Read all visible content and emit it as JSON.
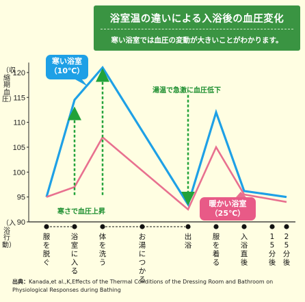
{
  "header": {
    "title": "浴室温の違いによる入浴後の血圧変化",
    "subtitle": "寒い浴室では血圧の変動が大きいことがわかります。"
  },
  "labels": {
    "ylabel": "（収縮期血圧）",
    "xlabel": "（入浴行動）",
    "cold_callout": "寒い浴室\n（10℃）",
    "warm_callout": "暖かい浴室\n（25℃）",
    "note_rise": "寒さで血圧上昇",
    "note_drop": "湯温で急激に血圧低下",
    "source_prefix": "出典：",
    "source_text": "Kanada,et al.,K,Effects of the Thermal Conditions of the Dressing Room and Bathroom on Physiological Responses during Bathing"
  },
  "colors": {
    "cold": "#1ea0e6",
    "warm": "#e8708f",
    "arrow": "#22a23a",
    "title_bg": "#3a9442",
    "background": "#fffee2"
  },
  "chart_data": {
    "type": "line",
    "title": "浴室温の違いによる入浴後の血圧変化",
    "ylabel": "（収縮期血圧）",
    "xlabel": "（入浴行動）",
    "ylim": [
      90,
      122
    ],
    "yticks": [
      90,
      95,
      100,
      105,
      110,
      115,
      120
    ],
    "grid": false,
    "categories": [
      "服を脱ぐ",
      "浴室に入る",
      "体を洗う",
      "お湯につかる",
      "出浴",
      "服を着る",
      "入浴直後",
      "15分後",
      "25分後"
    ],
    "x": [
      0,
      1,
      2,
      3.5,
      5,
      6,
      7,
      8,
      9
    ],
    "series": [
      {
        "name": "寒い浴室（10℃）",
        "color": "#1ea0e6",
        "x": [
          0,
          1,
          2,
          5,
          6,
          7,
          9
        ],
        "values": [
          95,
          114.5,
          121,
          93.5,
          112,
          96.2,
          95
        ]
      },
      {
        "name": "暖かい浴室（25℃）",
        "color": "#e8708f",
        "x": [
          0,
          1,
          2,
          5,
          6,
          7,
          9
        ],
        "values": [
          95,
          97,
          107,
          92.5,
          105,
          95.5,
          94
        ]
      }
    ],
    "annotations": [
      "寒さで血圧上昇",
      "湯温で急激に血圧低下"
    ]
  }
}
